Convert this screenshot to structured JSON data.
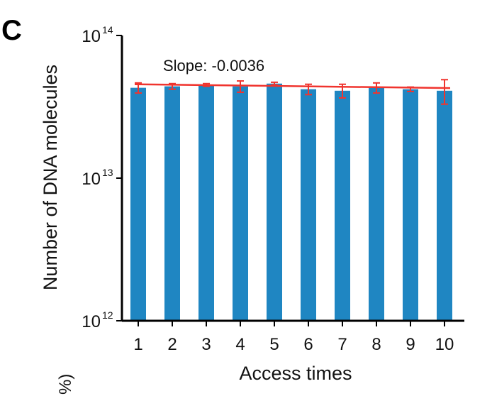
{
  "panel_label": "C",
  "cut_off_text": "%)",
  "colors": {
    "bar": "#1f86c2",
    "fit_line": "#f0342e",
    "error_bar": "#f0342e",
    "axis": "#000000"
  },
  "chart_data": {
    "type": "bar",
    "title": "",
    "xlabel": "Access times",
    "ylabel": "Number of DNA molecules",
    "yscale": "log",
    "ylim": [
      1000000000000.0,
      100000000000000.0
    ],
    "y_ticks": [
      {
        "base": "10",
        "exp": "12",
        "value": 1000000000000.0
      },
      {
        "base": "10",
        "exp": "13",
        "value": 10000000000000.0
      },
      {
        "base": "10",
        "exp": "14",
        "value": 100000000000000.0
      }
    ],
    "categories": [
      "1",
      "2",
      "3",
      "4",
      "5",
      "6",
      "7",
      "8",
      "9",
      "10"
    ],
    "series": [
      {
        "values": [
          43000000000000.0,
          44000000000000.0,
          45000000000000.0,
          44000000000000.0,
          46000000000000.0,
          42000000000000.0,
          41000000000000.0,
          43000000000000.0,
          42000000000000.0,
          41000000000000.0
        ],
        "error": [
          3500000000000.0,
          2000000000000.0,
          1000000000000.0,
          4000000000000.0,
          1000000000000.0,
          3500000000000.0,
          4500000000000.0,
          3500000000000.0,
          1500000000000.0,
          8000000000000.0
        ]
      }
    ],
    "fit_line": {
      "start": 45500000000000.0,
      "end": 42800000000000.0
    },
    "annotation": "Slope: -0.0036",
    "grid": false,
    "legend": "none"
  }
}
